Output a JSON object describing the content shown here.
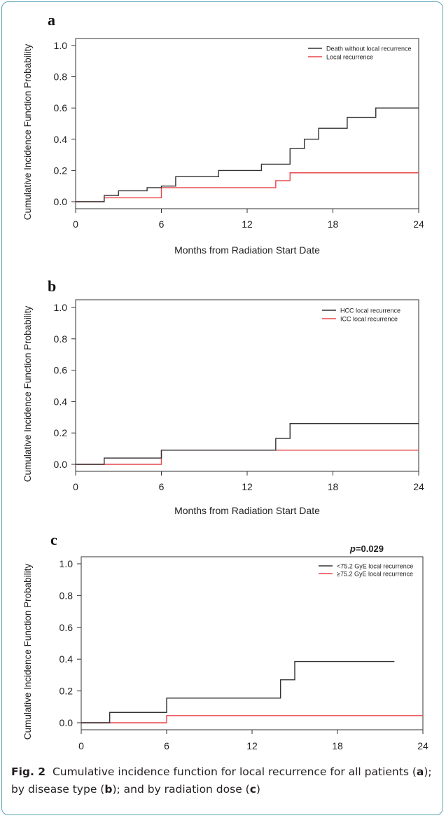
{
  "figure": {
    "caption_label": "Fig. 2",
    "caption_text_1": "Cumulative incidence function for local recurrence for all patients (",
    "caption_text_2": "); by disease type (",
    "caption_text_3": "); and by radiation dose (",
    "caption_text_4": ")",
    "caption_letters": [
      "a",
      "b",
      "c"
    ]
  },
  "colors": {
    "series_dark": "#333333",
    "series_red": "#e8464b",
    "series_darkred": "#b3262b",
    "frame_border": "#5aa6b4"
  },
  "chart_data": [
    {
      "type": "line",
      "panel_label": "a",
      "xlabel": "Months from Radiation Start Date",
      "ylabel": "Cumulative Incidence Function Probability",
      "xlim": [
        0,
        24
      ],
      "ylim": [
        0,
        1
      ],
      "x_ticks": [
        "0",
        "6",
        "12",
        "18",
        "24"
      ],
      "y_ticks": [
        "0.0",
        "0.2",
        "0.4",
        "0.6",
        "0.8",
        "1.0"
      ],
      "legend_position": "top-right",
      "annotation": "",
      "series": [
        {
          "name": "Death without local recurrence",
          "color": "#333333",
          "points": [
            [
              0,
              0
            ],
            [
              2,
              0.04
            ],
            [
              3,
              0.07
            ],
            [
              5,
              0.09
            ],
            [
              6,
              0.1
            ],
            [
              7,
              0.16
            ],
            [
              10,
              0.2
            ],
            [
              13,
              0.24
            ],
            [
              15,
              0.34
            ],
            [
              16,
              0.4
            ],
            [
              17,
              0.47
            ],
            [
              19,
              0.54
            ],
            [
              21,
              0.6
            ],
            [
              24,
              0.6
            ]
          ]
        },
        {
          "name": "Local recurrence",
          "color": "#e8464b",
          "points": [
            [
              0,
              0
            ],
            [
              2,
              0.025
            ],
            [
              6,
              0.09
            ],
            [
              14,
              0.135
            ],
            [
              15,
              0.185
            ],
            [
              24,
              0.185
            ]
          ]
        }
      ]
    },
    {
      "type": "line",
      "panel_label": "b",
      "xlabel": "Months from Radiation Start Date",
      "ylabel": "Cumulative Incidence Function Probability",
      "xlim": [
        0,
        24
      ],
      "ylim": [
        0,
        1
      ],
      "x_ticks": [
        "0",
        "6",
        "12",
        "18",
        "24"
      ],
      "y_ticks": [
        "0.0",
        "0.2",
        "0.4",
        "0.6",
        "0.8",
        "1.0"
      ],
      "legend_position": "top-right",
      "annotation": "",
      "series": [
        {
          "name": "HCC local recurrence",
          "color": "#333333",
          "points": [
            [
              0,
              0
            ],
            [
              2,
              0.04
            ],
            [
              6,
              0.09
            ],
            [
              14,
              0.165
            ],
            [
              15,
              0.26
            ],
            [
              24,
              0.26
            ]
          ]
        },
        {
          "name": "ICC local recurrence",
          "color": "#e8464b",
          "points": [
            [
              0,
              0
            ],
            [
              6,
              0.09
            ],
            [
              24,
              0.09
            ]
          ]
        }
      ]
    },
    {
      "type": "line",
      "panel_label": "c",
      "xlabel": "Months from Radiation Start Date",
      "ylabel": "Cumulative Incidence Function Probability",
      "xlim": [
        0,
        24
      ],
      "ylim": [
        0,
        1
      ],
      "x_ticks": [
        "0",
        "6",
        "12",
        "18",
        "24"
      ],
      "y_ticks": [
        "0.0",
        "0.2",
        "0.4",
        "0.6",
        "0.8",
        "1.0"
      ],
      "legend_position": "top-right",
      "annotation": "p=0.029",
      "series": [
        {
          "name": "<75.2 GyE local recurrence",
          "color": "#333333",
          "points": [
            [
              0,
              0
            ],
            [
              2,
              0.065
            ],
            [
              6,
              0.155
            ],
            [
              14,
              0.27
            ],
            [
              15,
              0.385
            ],
            [
              22,
              0.385
            ]
          ]
        },
        {
          "name": "≥75.2 GyE local recurrence",
          "color": "#e8464b",
          "points": [
            [
              0,
              0
            ],
            [
              6,
              0.045
            ],
            [
              24,
              0.045
            ]
          ]
        }
      ]
    }
  ]
}
